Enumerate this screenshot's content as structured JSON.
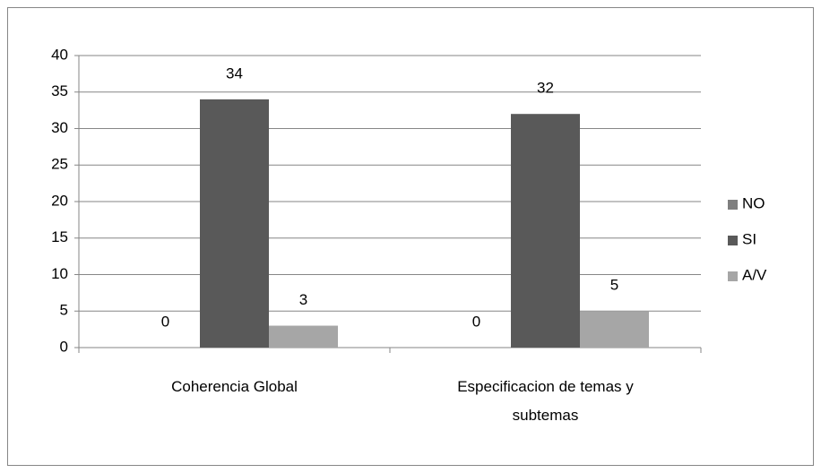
{
  "chart_data": {
    "type": "bar",
    "categories": [
      "Coherencia Global",
      "Especificacion de temas y subtemas"
    ],
    "series": [
      {
        "name": "NO",
        "color": "#7f7f7f",
        "values": [
          0,
          0
        ]
      },
      {
        "name": "SI",
        "color": "#595959",
        "values": [
          34,
          32
        ]
      },
      {
        "name": "A/V",
        "color": "#a6a6a6",
        "values": [
          3,
          5
        ]
      }
    ],
    "ylim": [
      0,
      40
    ],
    "yticks": [
      0,
      5,
      10,
      15,
      20,
      25,
      30,
      35,
      40
    ],
    "grid": true,
    "legend": "right"
  }
}
